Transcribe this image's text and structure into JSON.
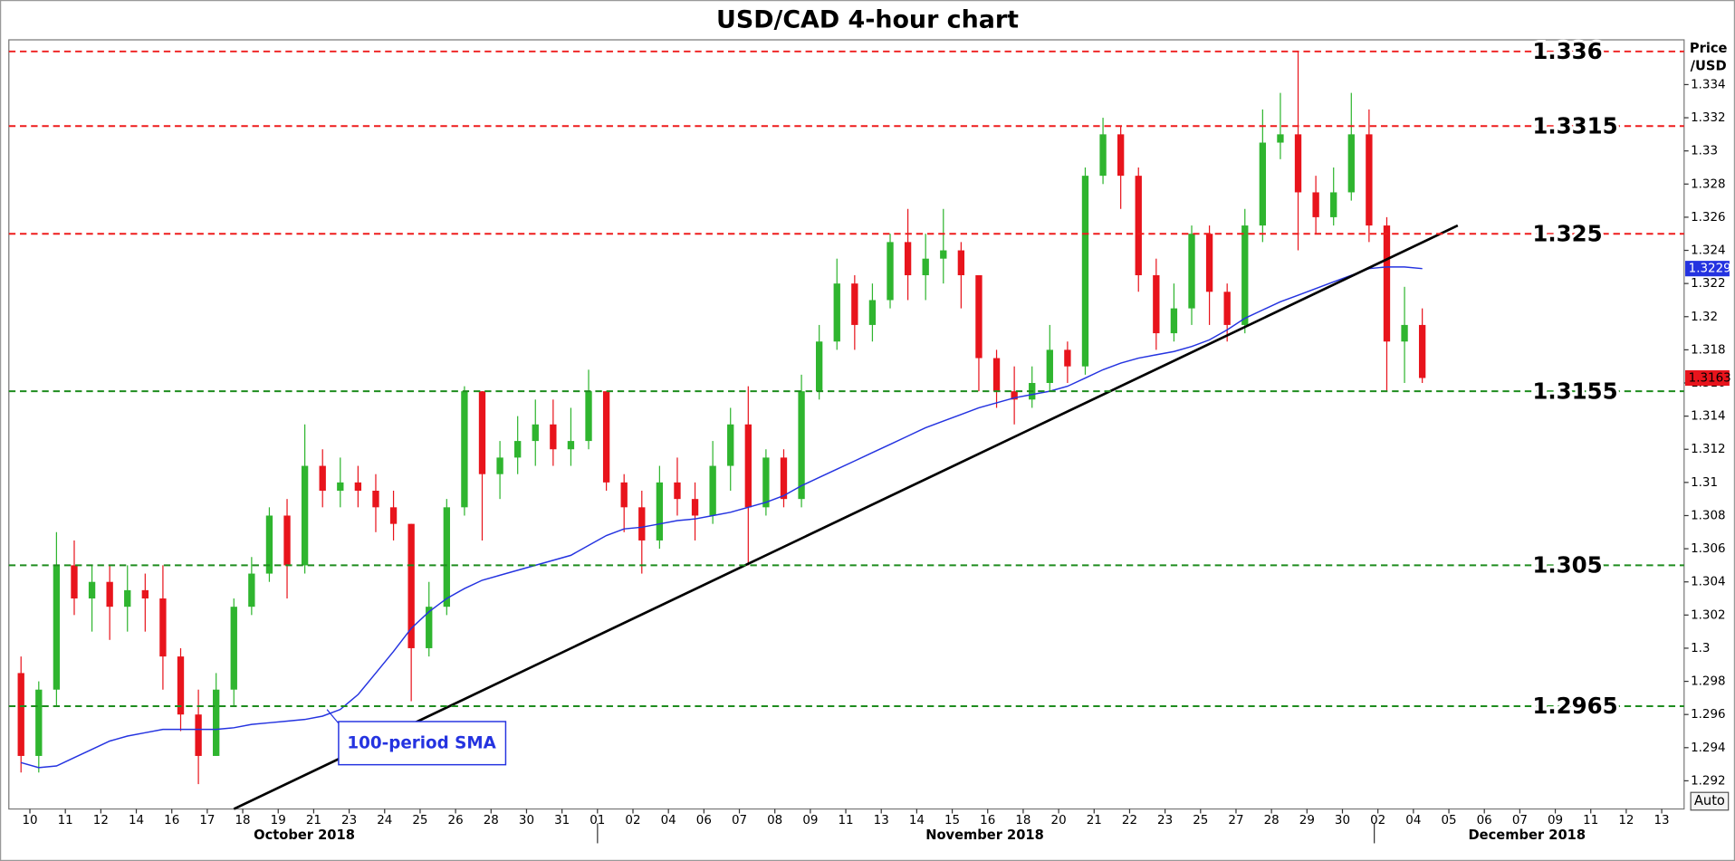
{
  "chart_data": {
    "type": "candlestick",
    "title": "USD/CAD 4-hour chart",
    "y_axis_label": [
      "Price",
      "/USD"
    ],
    "categories": [
      "10",
      null,
      "11",
      null,
      "12",
      null,
      "14",
      null,
      "16",
      null,
      "17",
      null,
      "18",
      null,
      "19",
      null,
      "21",
      null,
      "23",
      null,
      "24",
      null,
      "25",
      null,
      "26",
      null,
      "28",
      null,
      "30",
      null,
      "31",
      null,
      "01",
      null,
      "02",
      null,
      "04",
      null,
      "06",
      null,
      "07",
      null,
      "08",
      null,
      "09",
      null,
      "11",
      null,
      "13",
      null,
      "14",
      null,
      "15",
      null,
      "16",
      null,
      "18",
      null,
      "20",
      null,
      "21",
      null,
      "22",
      null,
      "23",
      null,
      "25",
      null,
      "27",
      null,
      "28",
      null,
      "29",
      null,
      "30",
      null,
      "02",
      null,
      "04",
      null,
      "05",
      null,
      "06",
      null,
      "07",
      null,
      "09",
      null,
      "11",
      null,
      "12",
      null,
      "13",
      null
    ],
    "month_labels": [
      "October 2018",
      "November 2018",
      "December 2018"
    ],
    "open": [
      1.2985,
      1.2935,
      1.2975,
      1.305,
      1.303,
      1.304,
      1.3025,
      1.3035,
      1.303,
      1.2995,
      1.296,
      1.2935,
      1.2975,
      1.3025,
      1.3045,
      1.308,
      1.305,
      1.311,
      1.3095,
      1.31,
      1.3095,
      1.3085,
      1.3075,
      1.3,
      1.3025,
      1.3085,
      1.3155,
      1.3105,
      1.3115,
      1.3125,
      1.3135,
      1.312,
      1.3125,
      1.3155,
      1.31,
      1.3085,
      1.3065,
      1.31,
      1.309,
      1.308,
      1.311,
      1.3135,
      1.3085,
      1.3115,
      1.309,
      1.3155,
      1.3185,
      1.322,
      1.3195,
      1.321,
      1.3245,
      1.3225,
      1.3235,
      1.324,
      1.3225,
      1.3175,
      1.3155,
      1.315,
      1.316,
      1.318,
      1.317,
      1.3285,
      1.331,
      1.3285,
      1.3225,
      1.319,
      1.3205,
      1.325,
      1.3215,
      1.3195,
      1.3255,
      1.3305,
      1.331,
      1.3275,
      1.326,
      1.3275,
      1.331,
      1.3255,
      1.3185,
      1.3195,
      null,
      null,
      null,
      null,
      null,
      null,
      null,
      null,
      null,
      null,
      null,
      null,
      null,
      null
    ],
    "high": [
      1.2995,
      1.298,
      1.307,
      1.3065,
      1.305,
      1.305,
      1.305,
      1.3045,
      1.305,
      1.3,
      1.2975,
      1.2985,
      1.303,
      1.3055,
      1.3085,
      1.309,
      1.3135,
      1.312,
      1.3115,
      1.311,
      1.3105,
      1.3095,
      1.3075,
      1.304,
      1.309,
      1.3158,
      1.3155,
      1.3125,
      1.314,
      1.315,
      1.315,
      1.3145,
      1.3168,
      1.3155,
      1.3105,
      1.3095,
      1.311,
      1.3115,
      1.31,
      1.3125,
      1.3145,
      1.3158,
      1.312,
      1.312,
      1.3165,
      1.3195,
      1.3235,
      1.3225,
      1.322,
      1.325,
      1.3265,
      1.325,
      1.3265,
      1.3245,
      1.3225,
      1.318,
      1.317,
      1.317,
      1.3195,
      1.3185,
      1.329,
      1.332,
      1.3315,
      1.329,
      1.3235,
      1.322,
      1.3255,
      1.3255,
      1.322,
      1.3265,
      1.3325,
      1.3335,
      1.336,
      1.3285,
      1.329,
      1.3335,
      1.3325,
      1.326,
      1.3218,
      1.3205,
      null,
      null,
      null,
      null,
      null,
      null,
      null,
      null,
      null,
      null,
      null,
      null,
      null,
      null
    ],
    "low": [
      1.2925,
      1.2925,
      1.2965,
      1.302,
      1.301,
      1.3005,
      1.301,
      1.301,
      1.2975,
      1.295,
      1.2918,
      1.2935,
      1.2965,
      1.302,
      1.304,
      1.303,
      1.3045,
      1.3085,
      1.3085,
      1.3085,
      1.307,
      1.3065,
      1.2968,
      1.2995,
      1.302,
      1.308,
      1.3065,
      1.309,
      1.3105,
      1.311,
      1.311,
      1.311,
      1.312,
      1.3095,
      1.307,
      1.3045,
      1.306,
      1.308,
      1.3065,
      1.3075,
      1.3095,
      1.305,
      1.308,
      1.3085,
      1.3085,
      1.315,
      1.318,
      1.318,
      1.3185,
      1.3205,
      1.321,
      1.321,
      1.322,
      1.3205,
      1.3155,
      1.3145,
      1.3135,
      1.3145,
      1.3155,
      1.316,
      1.3165,
      1.328,
      1.3265,
      1.3215,
      1.318,
      1.3185,
      1.3195,
      1.3195,
      1.3185,
      1.319,
      1.3245,
      1.3295,
      1.324,
      1.325,
      1.3255,
      1.327,
      1.3245,
      1.3155,
      1.316,
      1.316,
      null,
      null,
      null,
      null,
      null,
      null,
      null,
      null,
      null,
      null,
      null,
      null,
      null,
      null
    ],
    "close": [
      1.2935,
      1.2975,
      1.305,
      1.303,
      1.304,
      1.3025,
      1.3035,
      1.303,
      1.2995,
      1.296,
      1.2935,
      1.2975,
      1.3025,
      1.3045,
      1.308,
      1.305,
      1.311,
      1.3095,
      1.31,
      1.3095,
      1.3085,
      1.3075,
      1.3,
      1.3025,
      1.3085,
      1.3155,
      1.3105,
      1.3115,
      1.3125,
      1.3135,
      1.312,
      1.3125,
      1.3155,
      1.31,
      1.3085,
      1.3065,
      1.31,
      1.309,
      1.308,
      1.311,
      1.3135,
      1.3085,
      1.3115,
      1.309,
      1.3155,
      1.3185,
      1.322,
      1.3195,
      1.321,
      1.3245,
      1.3225,
      1.3235,
      1.324,
      1.3225,
      1.3175,
      1.3155,
      1.315,
      1.316,
      1.318,
      1.317,
      1.3285,
      1.331,
      1.3285,
      1.3225,
      1.319,
      1.3205,
      1.325,
      1.3215,
      1.3195,
      1.3255,
      1.3305,
      1.331,
      1.3275,
      1.326,
      1.3275,
      1.331,
      1.3255,
      1.3185,
      1.3195,
      1.3163,
      null,
      null,
      null,
      null,
      null,
      null,
      null,
      null,
      null,
      null,
      null,
      null,
      null,
      null
    ],
    "up_color": "#2fb52f",
    "down_color": "#e8141c",
    "sma": {
      "name": "100-period SMA",
      "color": "#2433e0",
      "values": [
        1.2931,
        1.2928,
        1.2929,
        1.2934,
        1.2939,
        1.2944,
        1.2947,
        1.2949,
        1.2951,
        1.2951,
        1.2951,
        1.2951,
        1.2952,
        1.2954,
        1.2955,
        1.2956,
        1.2957,
        1.2959,
        1.2963,
        1.2972,
        1.2985,
        1.2998,
        1.3012,
        1.3022,
        1.303,
        1.3036,
        1.3041,
        1.3044,
        1.3047,
        1.305,
        1.3053,
        1.3056,
        1.3062,
        1.3068,
        1.3072,
        1.3073,
        1.3075,
        1.3077,
        1.3078,
        1.308,
        1.3082,
        1.3085,
        1.3088,
        1.3092,
        1.3098,
        1.3103,
        1.3108,
        1.3113,
        1.3118,
        1.3123,
        1.3128,
        1.3133,
        1.3137,
        1.3141,
        1.3145,
        1.3148,
        1.3151,
        1.3153,
        1.3155,
        1.3158,
        1.3163,
        1.3168,
        1.3172,
        1.3175,
        1.3177,
        1.3179,
        1.3182,
        1.3186,
        1.3192,
        1.3199,
        1.3204,
        1.3209,
        1.3213,
        1.3217,
        1.3221,
        1.3225,
        1.3229,
        1.323,
        1.323,
        1.3229,
        null,
        null,
        null,
        null,
        null,
        null,
        null,
        null,
        null,
        null,
        null,
        null,
        null,
        null
      ]
    },
    "levels": [
      {
        "value": 1.336,
        "color": "#ee1c1c"
      },
      {
        "value": 1.3315,
        "color": "#ee1c1c"
      },
      {
        "value": 1.325,
        "color": "#ee1c1c"
      },
      {
        "value": 1.3155,
        "color": "#1e8c1e"
      },
      {
        "value": 1.305,
        "color": "#1e8c1e"
      },
      {
        "value": 1.2965,
        "color": "#1e8c1e"
      }
    ],
    "trendline": {
      "color": "#000000",
      "start": {
        "index": 12,
        "value": 1.2903
      },
      "end": {
        "index": 81,
        "value": 1.3255
      }
    },
    "ylim": [
      1.2903,
      1.3367
    ],
    "yticks": [
      1.292,
      1.294,
      1.296,
      1.298,
      1.3,
      1.302,
      1.304,
      1.306,
      1.308,
      1.31,
      1.312,
      1.314,
      1.316,
      1.318,
      1.32,
      1.322,
      1.324,
      1.326,
      1.328,
      1.33,
      1.332,
      1.334
    ],
    "scale_button": "Auto"
  }
}
